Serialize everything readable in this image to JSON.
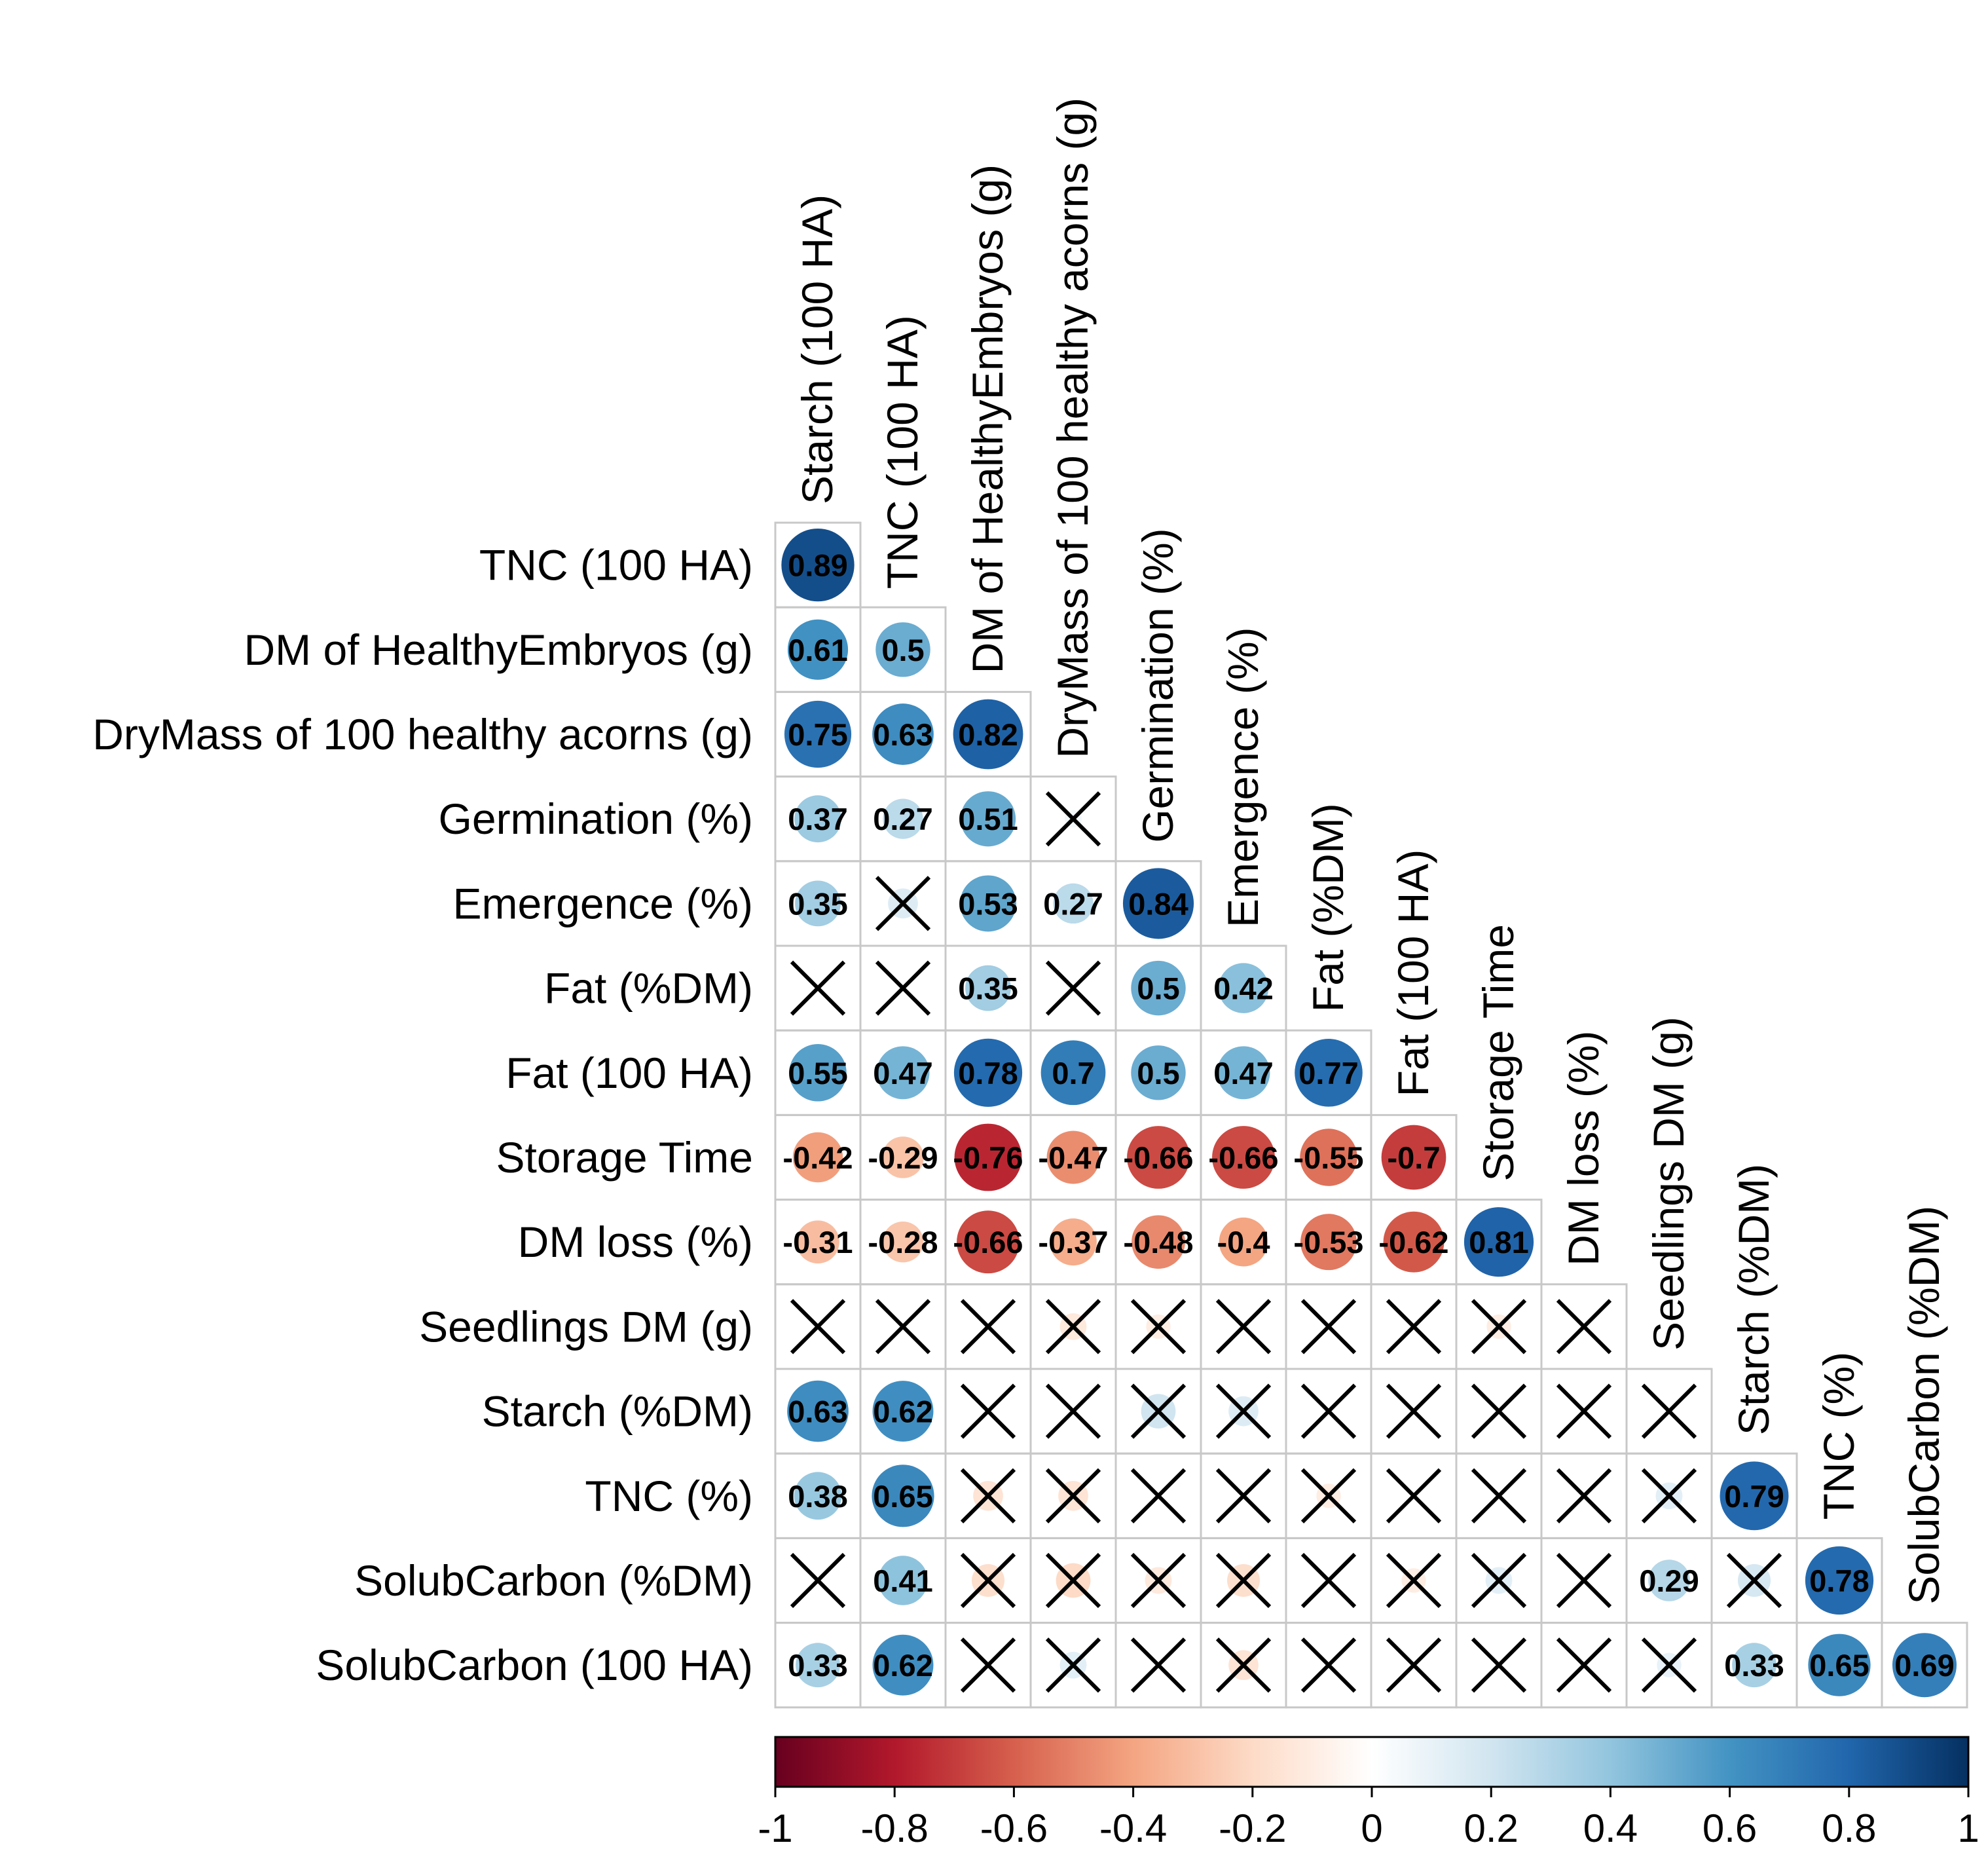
{
  "chart_data": {
    "type": "heatmap",
    "subtype": "correlation-matrix-lower-triangle",
    "title": "",
    "column_labels": [
      "Starch (100 HA)",
      "TNC (100 HA)",
      "DM of HealthyEmbryos (g)",
      "DryMass of 100 healthy acorns (g)",
      "Germination (%)",
      "Emergence (%)",
      "Fat (%DM)",
      "Fat (100 HA)",
      "Storage Time",
      "DM loss (%)",
      "Seedlings DM (g)",
      "Starch (%DM)",
      "TNC (%)",
      "SolubCarbon (%DM)"
    ],
    "row_labels": [
      "TNC (100 HA)",
      "DM of HealthyEmbryos (g)",
      "DryMass of 100 healthy acorns (g)",
      "Germination (%)",
      "Emergence (%)",
      "Fat (%DM)",
      "Fat (100 HA)",
      "Storage Time",
      "DM loss (%)",
      "Seedlings DM (g)",
      "Starch (%DM)",
      "TNC (%)",
      "SolubCarbon (%DM)",
      "SolubCarbon (100 HA)"
    ],
    "values": [
      [
        0.89
      ],
      [
        0.61,
        0.5
      ],
      [
        0.75,
        0.63,
        0.82
      ],
      [
        0.37,
        0.27,
        0.51,
        0.05
      ],
      [
        0.35,
        0.15,
        0.53,
        0.27,
        0.84
      ],
      [
        0.0,
        0.0,
        0.35,
        0.0,
        0.5,
        0.42
      ],
      [
        0.55,
        0.47,
        0.78,
        0.7,
        0.5,
        0.47,
        0.77
      ],
      [
        -0.42,
        -0.29,
        -0.76,
        -0.47,
        -0.66,
        -0.66,
        -0.55,
        -0.7
      ],
      [
        -0.31,
        -0.28,
        -0.66,
        -0.37,
        -0.48,
        -0.4,
        -0.53,
        -0.62,
        0.81
      ],
      [
        0.0,
        0.0,
        0.0,
        -0.12,
        -0.1,
        0.0,
        0.0,
        0.0,
        -0.1,
        0.0
      ],
      [
        0.63,
        0.62,
        0.0,
        0.0,
        0.2,
        0.15,
        0.0,
        0.0,
        0.0,
        0.0,
        0.0
      ],
      [
        0.38,
        0.65,
        -0.15,
        -0.15,
        0.0,
        0.0,
        -0.1,
        0.0,
        0.0,
        0.0,
        0.12,
        0.79
      ],
      [
        0.0,
        0.41,
        -0.18,
        -0.2,
        -0.12,
        -0.18,
        0.0,
        -0.1,
        0.12,
        0.0,
        0.29,
        0.18,
        0.78
      ],
      [
        0.33,
        0.62,
        0.0,
        0.12,
        0.0,
        -0.15,
        0.0,
        0.0,
        0.0,
        0.0,
        0.1,
        0.33,
        0.65,
        0.69
      ]
    ],
    "shown_labels": [
      [
        "0.89"
      ],
      [
        "0.61",
        "0.5"
      ],
      [
        "0.75",
        "0.63",
        "0.82"
      ],
      [
        "0.37",
        "0.27",
        "0.51",
        ""
      ],
      [
        "0.35",
        "",
        "0.53",
        "0.27",
        "0.84"
      ],
      [
        "",
        "",
        "0.35",
        "",
        "0.5",
        "0.42"
      ],
      [
        "0.55",
        "0.47",
        "0.78",
        "0.7",
        "0.5",
        "0.47",
        "0.77"
      ],
      [
        "-0.42",
        "-0.29",
        "-0.76",
        "-0.47",
        "-0.66",
        "-0.66",
        "-0.55",
        "-0.7"
      ],
      [
        "-0.31",
        "-0.28",
        "-0.66",
        "-0.37",
        "-0.48",
        "-0.4",
        "-0.53",
        "-0.62",
        "0.81"
      ],
      [
        "",
        "",
        "",
        "",
        "",
        "",
        "",
        "",
        "",
        ""
      ],
      [
        "0.63",
        "0.62",
        "",
        "",
        "",
        "",
        "",
        "",
        "",
        "",
        ""
      ],
      [
        "0.38",
        "0.65",
        "",
        "",
        "",
        "",
        "",
        "",
        "",
        "",
        "",
        "0.79"
      ],
      [
        "",
        "0.41",
        "",
        "",
        "",
        "",
        "",
        "",
        "",
        "",
        "0.29",
        "",
        "0.78"
      ],
      [
        "0.33",
        "0.62",
        "",
        "",
        "",
        "",
        "",
        "",
        "",
        "",
        "",
        "0.33",
        "0.65",
        "0.69"
      ]
    ],
    "not_significant": [
      [
        false
      ],
      [
        false,
        false
      ],
      [
        false,
        false,
        false
      ],
      [
        false,
        false,
        false,
        true
      ],
      [
        false,
        true,
        false,
        false,
        false
      ],
      [
        true,
        true,
        false,
        true,
        false,
        false
      ],
      [
        false,
        false,
        false,
        false,
        false,
        false,
        false
      ],
      [
        false,
        false,
        false,
        false,
        false,
        false,
        false,
        false
      ],
      [
        false,
        false,
        false,
        false,
        false,
        false,
        false,
        false,
        false
      ],
      [
        true,
        true,
        true,
        true,
        true,
        true,
        true,
        true,
        true,
        true
      ],
      [
        false,
        false,
        true,
        true,
        true,
        true,
        true,
        true,
        true,
        true,
        true
      ],
      [
        false,
        false,
        true,
        true,
        true,
        true,
        true,
        true,
        true,
        true,
        true,
        false
      ],
      [
        true,
        false,
        true,
        true,
        true,
        true,
        true,
        true,
        true,
        true,
        false,
        true,
        false
      ],
      [
        false,
        false,
        true,
        true,
        true,
        true,
        true,
        true,
        true,
        true,
        true,
        false,
        false,
        false
      ]
    ],
    "colorbar": {
      "min": -1,
      "max": 1,
      "ticks": [
        -1,
        -0.8,
        -0.6,
        -0.4,
        -0.2,
        0,
        0.2,
        0.4,
        0.6,
        0.8,
        1
      ],
      "tick_labels": [
        "-1",
        "-0.8",
        "-0.6",
        "-0.4",
        "-0.2",
        "0",
        "0.2",
        "0.4",
        "0.6",
        "0.8",
        "1"
      ],
      "colors": [
        "#67001f",
        "#b2182b",
        "#d6604d",
        "#f4a582",
        "#fddbc7",
        "#ffffff",
        "#d1e5f0",
        "#92c5de",
        "#4393c3",
        "#2166ac",
        "#053061"
      ]
    },
    "legend_position": "bottom",
    "grid": true
  }
}
